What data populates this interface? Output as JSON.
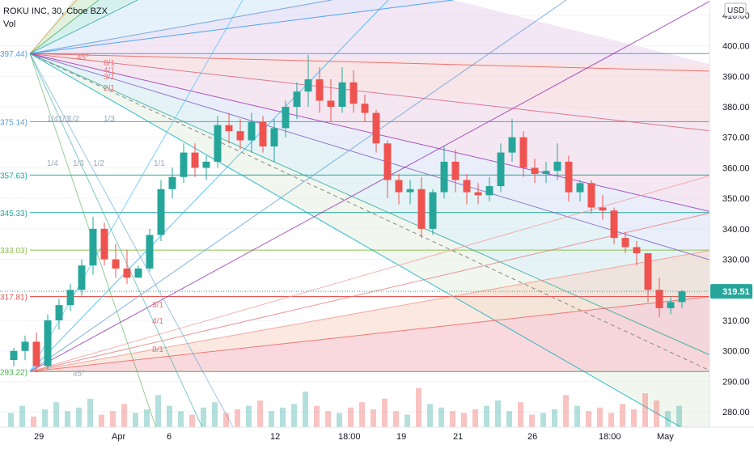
{
  "header": {
    "symbol": "ROKU INC, 30, Cboe BZX",
    "volume_label": "Vol"
  },
  "chart_data": {
    "type": "candlestick",
    "title": "ROKU INC, 30, Cboe BZX",
    "currency": "USD",
    "ylim": [
      275,
      415
    ],
    "y_ticks": [
      280,
      290,
      300,
      310,
      320,
      330,
      340,
      350,
      360,
      370,
      380,
      390,
      400,
      410
    ],
    "y_tick_labels": [
      "280.00",
      "290.00",
      "300.00",
      "310.00",
      "320.00",
      "330.00",
      "340.00",
      "350.00",
      "360.00",
      "370.00",
      "380.00",
      "390.00",
      "400.00",
      "410.00"
    ],
    "x_labels": [
      "29",
      "Apr",
      "6",
      "12",
      "18:00",
      "19",
      "21",
      "26",
      "18:00",
      "May"
    ],
    "last_price": 319.51,
    "last_price_label": "319.51",
    "price_path": [
      [
        297,
        301,
        295,
        300
      ],
      [
        300,
        305,
        297,
        303
      ],
      [
        303,
        306,
        293,
        295
      ],
      [
        295,
        312,
        294,
        310
      ],
      [
        310,
        317,
        307,
        315
      ],
      [
        315,
        322,
        313,
        320
      ],
      [
        320,
        330,
        318,
        328
      ],
      [
        328,
        344,
        325,
        340
      ],
      [
        340,
        342,
        328,
        330
      ],
      [
        330,
        335,
        324,
        327
      ],
      [
        327,
        333,
        322,
        324
      ],
      [
        324,
        328,
        324,
        327
      ],
      [
        327,
        340,
        326,
        338
      ],
      [
        338,
        356,
        336,
        353
      ],
      [
        353,
        360,
        350,
        357
      ],
      [
        357,
        368,
        355,
        365
      ],
      [
        365,
        368,
        357,
        360
      ],
      [
        360,
        364,
        356,
        362
      ],
      [
        362,
        377,
        360,
        374
      ],
      [
        374,
        378,
        368,
        372
      ],
      [
        372,
        376,
        366,
        369
      ],
      [
        369,
        378,
        365,
        375
      ],
      [
        375,
        377,
        365,
        367
      ],
      [
        367,
        376,
        362,
        373
      ],
      [
        373,
        382,
        370,
        380
      ],
      [
        380,
        388,
        376,
        385
      ],
      [
        385,
        397,
        380,
        389
      ],
      [
        389,
        393,
        378,
        382
      ],
      [
        382,
        389,
        375,
        380
      ],
      [
        380,
        393,
        378,
        388
      ],
      [
        388,
        392,
        378,
        381
      ],
      [
        381,
        384,
        375,
        378
      ],
      [
        378,
        379,
        365,
        368
      ],
      [
        368,
        369,
        350,
        356
      ],
      [
        356,
        358,
        348,
        352
      ],
      [
        352,
        356,
        348,
        353
      ],
      [
        353,
        357,
        337,
        340
      ],
      [
        340,
        353,
        338,
        352
      ],
      [
        352,
        367,
        350,
        362
      ],
      [
        362,
        366,
        352,
        356
      ],
      [
        356,
        358,
        348,
        352
      ],
      [
        352,
        355,
        348,
        351
      ],
      [
        351,
        357,
        349,
        354
      ],
      [
        354,
        368,
        352,
        365
      ],
      [
        365,
        376,
        362,
        370
      ],
      [
        370,
        372,
        357,
        360
      ],
      [
        360,
        363,
        355,
        358
      ],
      [
        358,
        362,
        355,
        359
      ],
      [
        359,
        368,
        356,
        362
      ],
      [
        362,
        364,
        349,
        352
      ],
      [
        352,
        356,
        349,
        355
      ],
      [
        355,
        356,
        345,
        347
      ],
      [
        347,
        351,
        343,
        346
      ],
      [
        346,
        347,
        335,
        337
      ],
      [
        337,
        339,
        332,
        334
      ],
      [
        334,
        336,
        328,
        332
      ],
      [
        332,
        329,
        316,
        320
      ],
      [
        320,
        324,
        311,
        314
      ],
      [
        314,
        318,
        312,
        316
      ],
      [
        316,
        320,
        314,
        319.51
      ]
    ],
    "volume": [
      8,
      12,
      6,
      10,
      14,
      9,
      11,
      16,
      7,
      9,
      13,
      8,
      10,
      18,
      12,
      9,
      7,
      11,
      14,
      8,
      10,
      12,
      15,
      9,
      11,
      13,
      20,
      12,
      9,
      8,
      11,
      14,
      10,
      16,
      9,
      7,
      22,
      13,
      11,
      9,
      8,
      10,
      12,
      15,
      9,
      14,
      7,
      8,
      10,
      18,
      12,
      9,
      11,
      8,
      13,
      10,
      19,
      15,
      9,
      12
    ],
    "horizontal_levels": [
      {
        "label": "397.44)",
        "value": 397.44
      },
      {
        "label": "375.14)",
        "value": 375.14
      },
      {
        "label": "357.63)",
        "value": 357.63
      },
      {
        "label": "345.33)",
        "value": 345.33
      },
      {
        "label": "333.03)",
        "value": 333.03
      },
      {
        "label": "317.81)",
        "value": 317.81
      },
      {
        "label": "293.22)",
        "value": 293.22
      }
    ],
    "fan_top_labels": [
      "45°",
      "8/1",
      "4/1",
      "3/1",
      "2/1",
      "1/4",
      "1/3",
      "1/2",
      "1/3",
      "1/4",
      "1/3",
      "1/2",
      "1/1"
    ],
    "fan_bottom_labels": [
      "45°",
      "3/1",
      "4/1",
      "8/1"
    ],
    "colors": {
      "candle_up": "#26a69a",
      "candle_down": "#ef5350",
      "last_price": "#26a69a",
      "level_top": "#5b9bd5",
      "level_green": "#4caf50",
      "level_red": "#ef5350"
    }
  }
}
